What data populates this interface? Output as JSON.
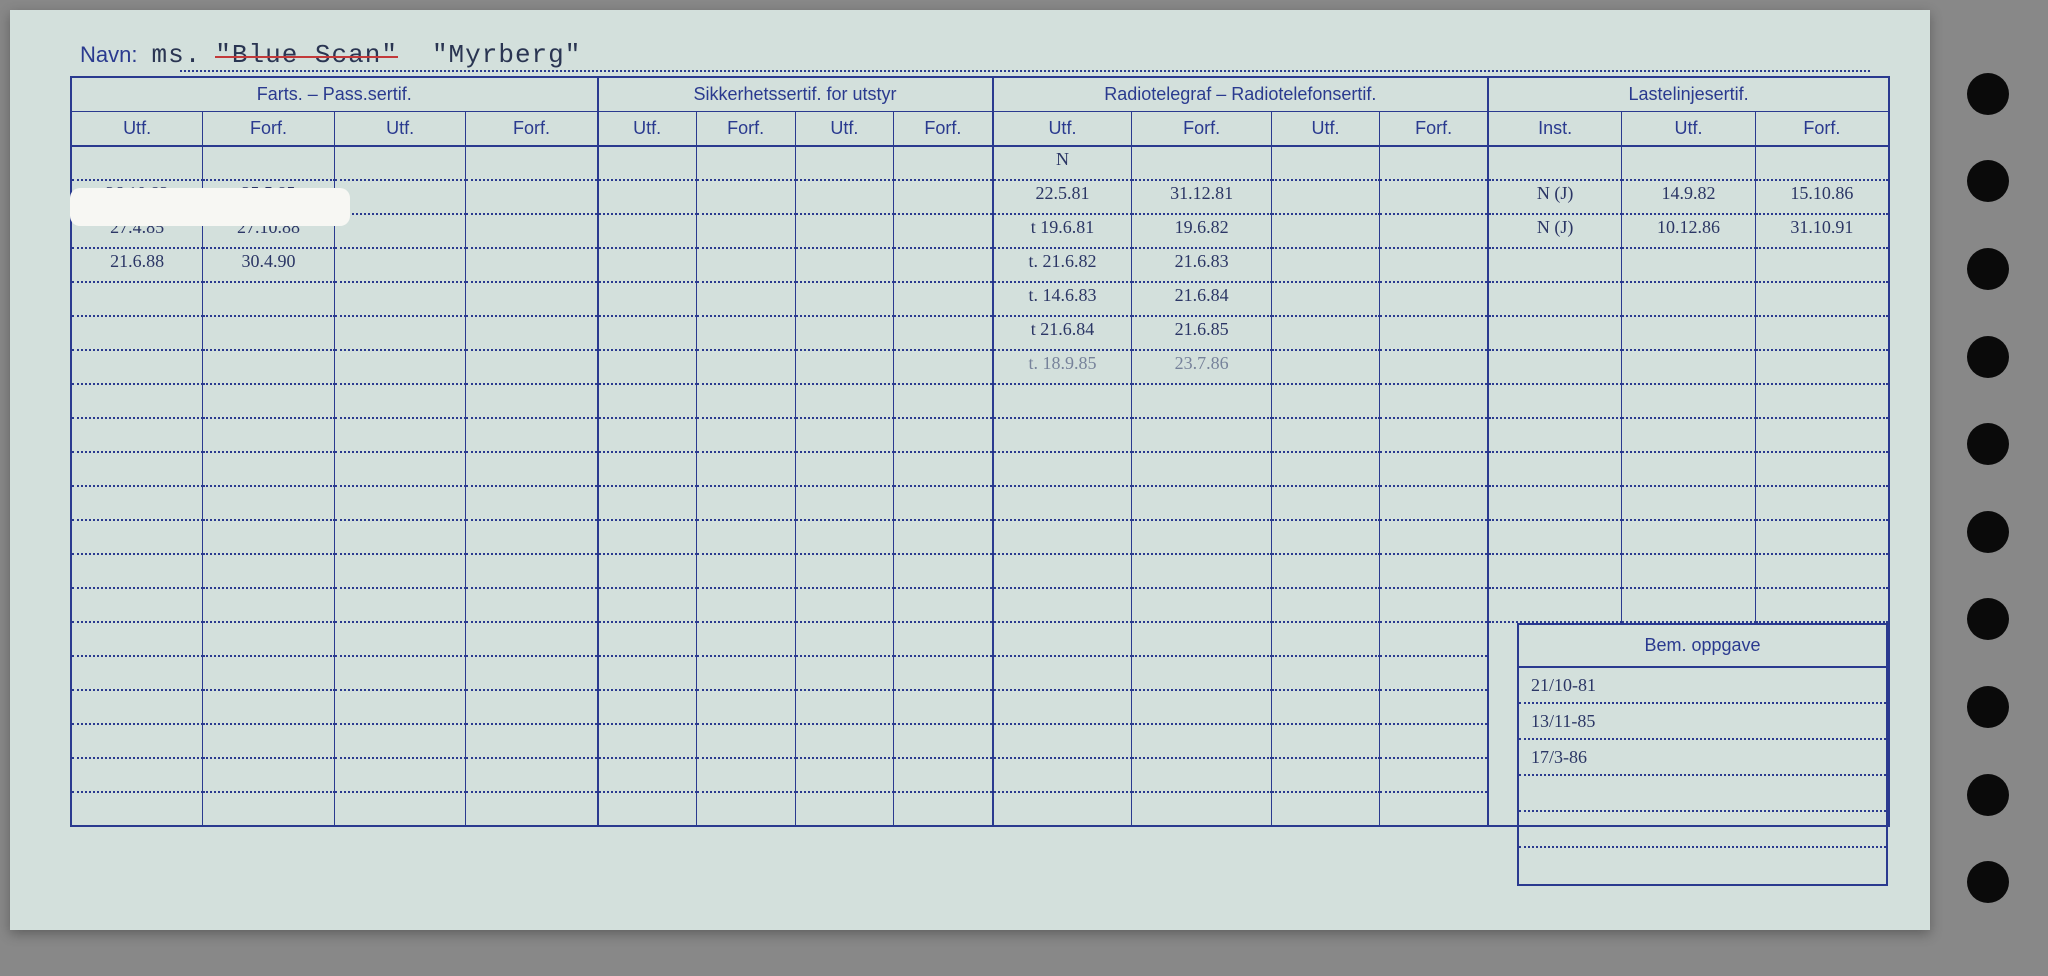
{
  "title": {
    "label": "Navn:",
    "prefix": "ms.",
    "crossed_name": "\"Blue Scan\"",
    "name": "\"Myrberg\""
  },
  "sections": {
    "farts": {
      "title": "Farts. – Pass.sertif.",
      "cols": [
        "Utf.",
        "Forf.",
        "Utf.",
        "Forf."
      ]
    },
    "sikker": {
      "title": "Sikkerhetssertif. for utstyr",
      "cols": [
        "Utf.",
        "Forf.",
        "Utf.",
        "Forf."
      ]
    },
    "radio": {
      "title": "Radiotelegraf – Radiotelefonsertif.",
      "cols": [
        "Utf.",
        "Forf.",
        "Utf.",
        "Forf."
      ]
    },
    "laste": {
      "title": "Lastelinjesertif.",
      "cols": [
        "Inst.",
        "Utf.",
        "Forf."
      ]
    }
  },
  "rows": [
    {
      "farts_utf": "",
      "farts_forf": "",
      "radio_utf": "N",
      "radio_forf": "",
      "laste_inst": "",
      "laste_utf": "",
      "laste_forf": ""
    },
    {
      "farts_utf": "26.10.82",
      "farts_forf": "25.5.85",
      "radio_utf": "22.5.81",
      "radio_forf": "31.12.81",
      "laste_inst": "N (J)",
      "laste_utf": "14.9.82",
      "laste_forf": "15.10.86"
    },
    {
      "farts_utf": "27.4.85",
      "farts_forf": "27.10.88",
      "radio_utf": "t 19.6.81",
      "radio_forf": "19.6.82",
      "laste_inst": "N (J)",
      "laste_utf": "10.12.86",
      "laste_forf": "31.10.91"
    },
    {
      "farts_utf": "21.6.88",
      "farts_forf": "30.4.90",
      "radio_utf": "t. 21.6.82",
      "radio_forf": "21.6.83",
      "laste_inst": "",
      "laste_utf": "",
      "laste_forf": ""
    },
    {
      "farts_utf": "",
      "farts_forf": "",
      "radio_utf": "t. 14.6.83",
      "radio_forf": "21.6.84",
      "laste_inst": "",
      "laste_utf": "",
      "laste_forf": ""
    },
    {
      "farts_utf": "",
      "farts_forf": "",
      "radio_utf": "t 21.6.84",
      "radio_forf": "21.6.85",
      "laste_inst": "",
      "laste_utf": "",
      "laste_forf": ""
    },
    {
      "farts_utf": "",
      "farts_forf": "",
      "radio_utf": "t. 18.9.85",
      "radio_forf": "23.7.86",
      "laste_inst": "",
      "laste_utf": "",
      "laste_forf": ""
    }
  ],
  "bem": {
    "title": "Bem. oppgave",
    "entries": [
      "21/10-81",
      "13/11-85",
      "17/3-86",
      "",
      "",
      ""
    ]
  },
  "colors": {
    "paper": "#d3e0dc",
    "ink": "#2a3a8f",
    "hand": "#2b3665",
    "strike": "#c23a3a"
  }
}
